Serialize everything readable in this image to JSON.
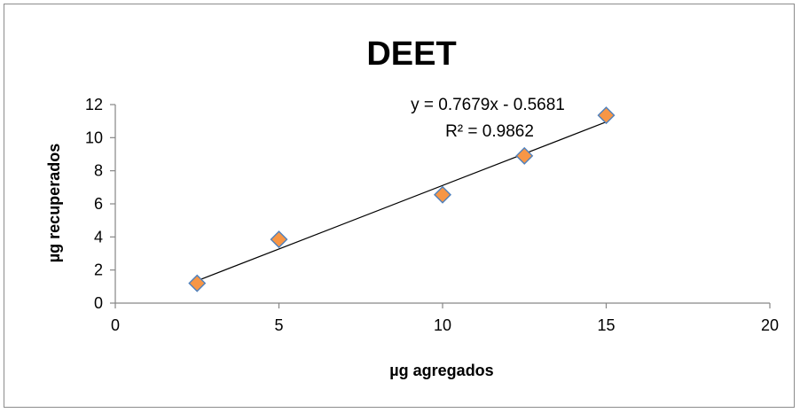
{
  "chart_data": {
    "type": "scatter",
    "title": "DEET",
    "xlabel": "µg agregados",
    "ylabel": "µg recuperados",
    "xlim": [
      0,
      20
    ],
    "ylim": [
      0,
      12
    ],
    "x_ticks": [
      "0",
      "5",
      "10",
      "15",
      "20"
    ],
    "y_ticks": [
      "0",
      "2",
      "4",
      "6",
      "8",
      "10",
      "12"
    ],
    "grid": false,
    "legend": "none",
    "series": [
      {
        "points": [
          {
            "x": 2.5,
            "y": 1.2
          },
          {
            "x": 5,
            "y": 3.85
          },
          {
            "x": 10,
            "y": 6.55
          },
          {
            "x": 12.5,
            "y": 8.9
          },
          {
            "x": 15,
            "y": 11.35
          }
        ],
        "marker": "diamond",
        "fill_color": "#f79646",
        "edge_color": "#4f81bd"
      }
    ],
    "trendline": {
      "slope": 0.7679,
      "intercept": -0.5681,
      "x_range": [
        2.5,
        15
      ],
      "color": "#000000",
      "equation_label": "y = 0.7679x - 0.5681",
      "r2_label": "R² = 0.9862"
    }
  }
}
